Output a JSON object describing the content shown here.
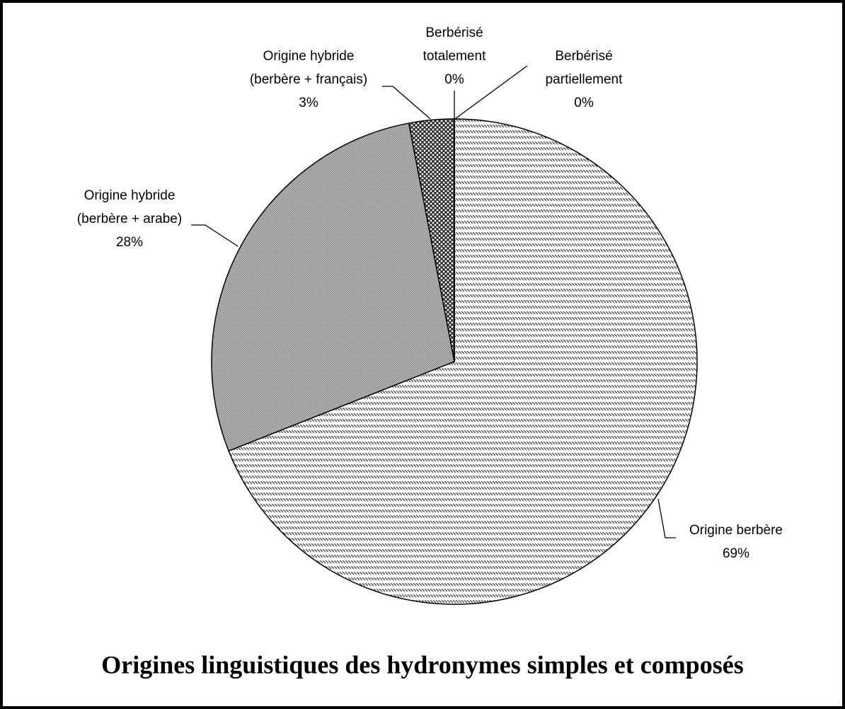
{
  "chart_data": {
    "type": "pie",
    "title": "Origines linguistiques des hydronymes simples et composés",
    "categories": [
      [
        "Origine berbère"
      ],
      [
        "Origine hybride",
        "(berbère + arabe)"
      ],
      [
        "Origine hybride",
        "(berbère + français)"
      ],
      [
        "Berbérisé",
        "totalement"
      ],
      [
        "Berbérisé",
        "partiellement"
      ]
    ],
    "values": [
      69,
      28,
      3,
      0,
      0
    ],
    "value_labels": [
      "69%",
      "28%",
      "3%",
      "0%",
      "0%"
    ],
    "colors": [
      "#555555",
      "#777777",
      "#222222",
      "#000000",
      "#000000"
    ]
  }
}
